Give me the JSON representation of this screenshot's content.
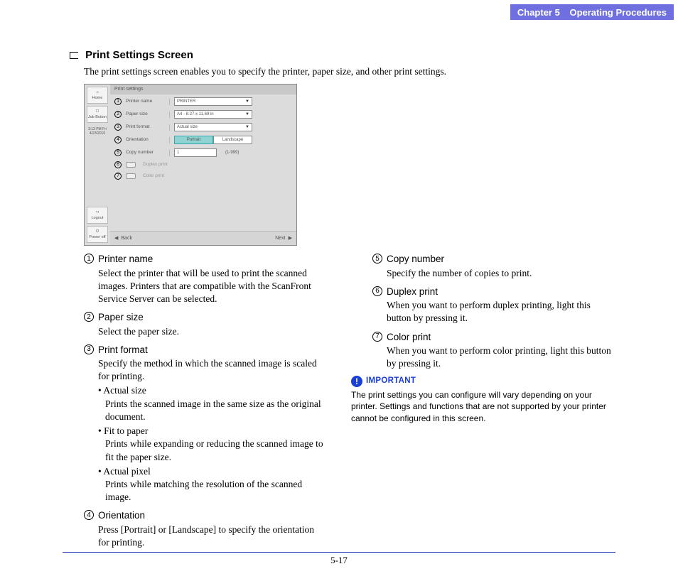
{
  "chapter": {
    "number": "Chapter 5",
    "title": "Operating Procedures"
  },
  "section": {
    "heading": "Print Settings Screen",
    "intro": "The print settings screen enables you to specify the printer, paper size, and other print settings."
  },
  "uiShot": {
    "title": "Print settings",
    "sidebar": {
      "home": "Home",
      "jobButton": "Job Button",
      "timestamp": "3:13 PM  Fri\n4/23/2010",
      "logout": "Logout",
      "powerOff": "Power off"
    },
    "rows": {
      "printerName": {
        "num": "1",
        "label": "Printer name",
        "value": "PRINTER"
      },
      "paperSize": {
        "num": "2",
        "label": "Paper size",
        "value": "A4 - 8.27 x 11.69 in"
      },
      "printFormat": {
        "num": "3",
        "label": "Print format",
        "value": "Actual size"
      },
      "orientation": {
        "num": "4",
        "label": "Orientation",
        "portrait": "Portrait",
        "landscape": "Landscape"
      },
      "copyNumber": {
        "num": "5",
        "label": "Copy number",
        "value": "1",
        "range": "(1-999)"
      },
      "duplex": {
        "num": "6",
        "label": "Duplex print"
      },
      "colorPrint": {
        "num": "7",
        "label": "Color print"
      }
    },
    "nav": {
      "back": "Back",
      "next": "Next",
      "leftArrow": "◀",
      "rightArrow": "▶"
    }
  },
  "items": {
    "i1": {
      "num": "1",
      "title": "Printer name",
      "body": "Select the printer that will be used to print the scanned images. Printers that are compatible with the ScanFront Service Server can be selected."
    },
    "i2": {
      "num": "2",
      "title": "Paper size",
      "body": "Select the paper size."
    },
    "i3": {
      "num": "3",
      "title": "Print format",
      "body": "Specify the method in which the scanned image is scaled for printing.",
      "sub1h": "• Actual size",
      "sub1b": "Prints the scanned image in the same size as the original document.",
      "sub2h": "• Fit to paper",
      "sub2b": "Prints while expanding or reducing the scanned image to fit the paper size.",
      "sub3h": "• Actual pixel",
      "sub3b": "Prints while matching the resolution of the scanned image."
    },
    "i4": {
      "num": "4",
      "title": "Orientation",
      "body": "Press [Portrait] or [Landscape] to specify the orientation for printing."
    },
    "i5": {
      "num": "5",
      "title": "Copy number",
      "body": "Specify the number of copies to print."
    },
    "i6": {
      "num": "6",
      "title": "Duplex print",
      "body": "When you want to perform duplex printing, light this button by pressing it."
    },
    "i7": {
      "num": "7",
      "title": "Color print",
      "body": "When you want to perform color printing, light this button by pressing it."
    }
  },
  "important": {
    "label": "IMPORTANT",
    "text": "The print settings you can configure will vary depending on your printer. Settings and functions that are not supported by your printer cannot be configured in this screen."
  },
  "pageNumber": "5-17",
  "style": {
    "bannerBg": "#6f6fe0",
    "footerLine": "#1a2fb0",
    "importantColor": "#1a3fd6"
  }
}
